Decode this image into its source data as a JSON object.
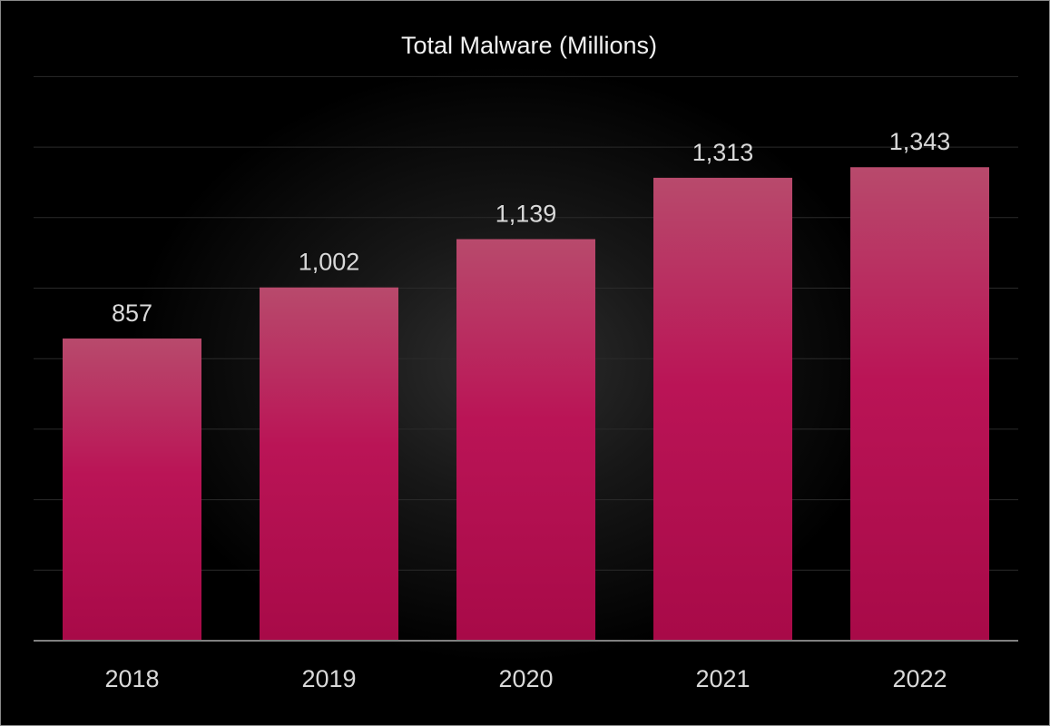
{
  "chart_data": {
    "type": "bar",
    "title": "Total Malware  (Millions)",
    "xlabel": "",
    "ylabel": "",
    "categories": [
      "2018",
      "2019",
      "2020",
      "2021",
      "2022"
    ],
    "values": [
      857,
      1002,
      1139,
      1313,
      1343
    ],
    "value_labels": [
      "857",
      "1,002",
      "1,139",
      "1,313",
      "1,343"
    ],
    "ylim": [
      0,
      1600
    ],
    "grid": true,
    "legend": "none",
    "colors": {
      "bar_top": "#b84a6c",
      "bar_mid": "#ba1456",
      "bar_bottom": "#a80a48",
      "gridline": "#2a2a2a",
      "axis": "#808080",
      "text": "#d9d9d9",
      "background": "#000000"
    }
  }
}
